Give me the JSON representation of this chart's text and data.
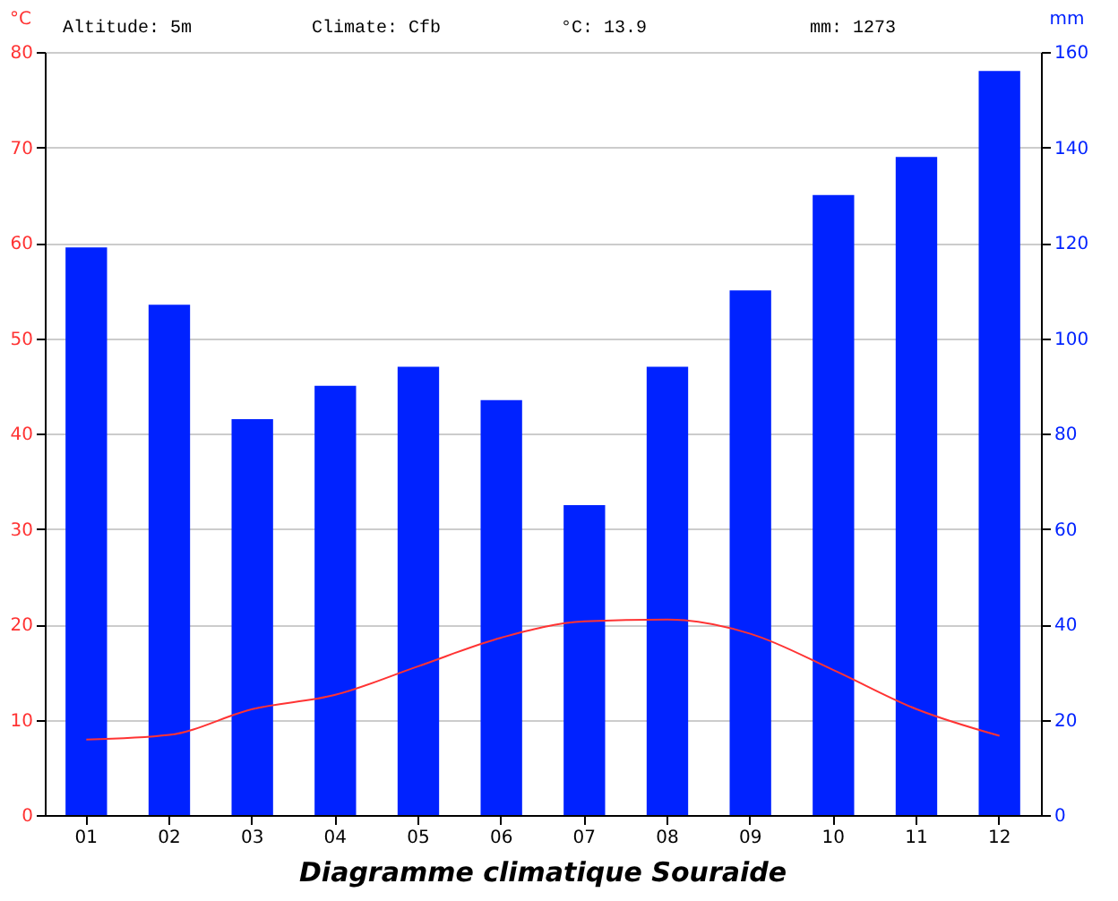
{
  "chart_data": {
    "type": "bar",
    "title": "Diagramme climatique Souraide",
    "ylabel": "°C",
    "y2label": "mm",
    "annotations": [
      "Altitude: 5m",
      "Climate: Cfb",
      "°C: 13.9",
      "mm: 1273"
    ],
    "categories": [
      "01",
      "02",
      "03",
      "04",
      "05",
      "06",
      "07",
      "08",
      "09",
      "10",
      "11",
      "12"
    ],
    "series": [
      {
        "axis": "y2",
        "color": "#0022ff",
        "values": [
          119,
          107,
          83,
          90,
          94,
          87,
          65,
          94,
          110,
          130,
          138,
          156
        ]
      },
      {
        "type": "line",
        "color": "#ff3333",
        "values": [
          7.9,
          8.4,
          11.1,
          12.6,
          15.6,
          18.6,
          20.3,
          20.5,
          19.0,
          15.2,
          11.1,
          8.3
        ]
      }
    ],
    "ylim": [
      0,
      80
    ],
    "yticks": [
      0,
      10,
      20,
      30,
      40,
      50,
      60,
      70,
      80
    ],
    "y2lim": [
      0,
      160
    ],
    "y2ticks": [
      0,
      20,
      40,
      60,
      80,
      100,
      120,
      140,
      160
    ],
    "grid": "y",
    "legend": false,
    "marker": "none",
    "line_style": "solid"
  }
}
